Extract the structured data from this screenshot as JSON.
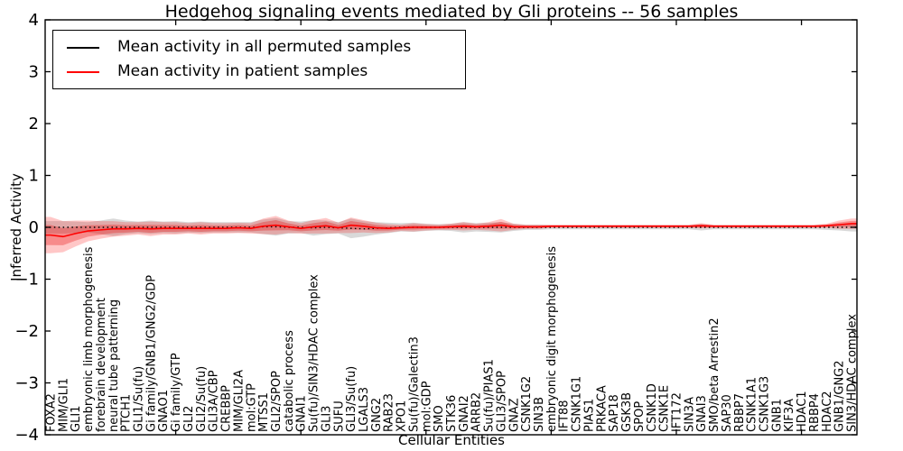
{
  "title": "Hedgehog signaling events mediated by Gli proteins -- 56 samples",
  "axes": {
    "xlabel": "Cellular Entities",
    "ylabel": "Inferred Activity",
    "y_tick_labels": [
      "4",
      "3",
      "2",
      "1",
      "0",
      "−1",
      "−2",
      "−3",
      "−4"
    ],
    "frame_color": "#000000"
  },
  "legend": {
    "items": [
      {
        "label": "Mean activity in all permuted samples",
        "color": "#000000"
      },
      {
        "label": "Mean activity in patient samples",
        "color": "#ff0000"
      }
    ]
  },
  "chart_data": {
    "type": "line",
    "title": "Hedgehog signaling events mediated by Gli proteins -- 56 samples",
    "xlabel": "Cellular Entities",
    "ylabel": "Inferred Activity",
    "ylim": [
      -4,
      4
    ],
    "grid": false,
    "legend_position": "upper left",
    "x_major_tick_indices": [
      10,
      20,
      30,
      40,
      50,
      60
    ],
    "categories": [
      "FOXA2",
      "MIM/GLI1",
      "GLI1",
      "embryonic limb morphogenesis",
      "forebrain development",
      "neural tube patterning",
      "PTCH1",
      "GLI1/Su(fu)",
      "Gi family/GNB1/GNG2/GDP",
      "GNAO1",
      "Gi family/GTP",
      "GLI2",
      "GLI2/Su(fu)",
      "GLI3A/CBP",
      "CREBBP",
      "MIM/GLI2A",
      "mol:GTP",
      "MTSS1",
      "GLI2/SPOP",
      "catabolic process",
      "GNAI1",
      "Su(fu)/SIN3/HDAC complex",
      "GLI3",
      "SUFU",
      "GLI3/Su(fu)",
      "LGALS3",
      "GNG2",
      "RAB23",
      "XPO1",
      "Su(fu)/Galectin3",
      "mol:GDP",
      "SMO",
      "STK36",
      "GNAI2",
      "ARRB2",
      "Su(fu)/PIAS1",
      "GLI3/SPOP",
      "GNAZ",
      "CSNK1G2",
      "SIN3B",
      "embryonic digit morphogenesis",
      "IFT88",
      "CSNK1G1",
      "PIAS1",
      "PRKACA",
      "SAP18",
      "GSK3B",
      "SPOP",
      "CSNK1D",
      "CSNK1E",
      "IFT172",
      "SIN3A",
      "GNAI3",
      "SMO/beta Arrestin2",
      "SAP30",
      "RBBP7",
      "CSNK1A1",
      "CSNK1G3",
      "GNB1",
      "KIF3A",
      "HDAC1",
      "RBBP4",
      "HDAC2",
      "GNB1/GNG2",
      "SIN3/HDAC complex"
    ],
    "series": [
      {
        "name": "Mean activity in all permuted samples",
        "color": "#000000",
        "line_style": "dotted",
        "band_color": "rgba(80,80,80,0.22)",
        "values": [
          0,
          0,
          0,
          0,
          0,
          0,
          0,
          0,
          0,
          0,
          0,
          0,
          0,
          0,
          0,
          0,
          0,
          0.01,
          0.01,
          0,
          0,
          -0.01,
          0,
          -0.01,
          -0.02,
          -0.03,
          -0.02,
          -0.01,
          0,
          0,
          0,
          0,
          0,
          0,
          0,
          0,
          0,
          0,
          0,
          0,
          0,
          0,
          0,
          0,
          0,
          0,
          0,
          0,
          0,
          0,
          0,
          0,
          0,
          0,
          0,
          0,
          0,
          0,
          0,
          0,
          0,
          0,
          0,
          0,
          0
        ],
        "band_halfwidth": [
          0.12,
          0.12,
          0.11,
          0.1,
          0.13,
          0.17,
          0.13,
          0.11,
          0.13,
          0.11,
          0.12,
          0.1,
          0.11,
          0.1,
          0.1,
          0.1,
          0.1,
          0.14,
          0.17,
          0.12,
          0.11,
          0.15,
          0.13,
          0.11,
          0.19,
          0.15,
          0.12,
          0.1,
          0.08,
          0.09,
          0.07,
          0.06,
          0.07,
          0.1,
          0.08,
          0.09,
          0.1,
          0.07,
          0.05,
          0.05,
          0.04,
          0.04,
          0.04,
          0.04,
          0.04,
          0.04,
          0.04,
          0.04,
          0.04,
          0.04,
          0.04,
          0.04,
          0.06,
          0.04,
          0.04,
          0.04,
          0.04,
          0.04,
          0.04,
          0.04,
          0.04,
          0.04,
          0.05,
          0.06,
          0.08
        ]
      },
      {
        "name": "Mean activity in patient samples",
        "color": "#ff0000",
        "line_style": "solid",
        "band_color": "rgba(255,0,0,0.22)",
        "band_inner_color": "rgba(230,0,0,0.30)",
        "values": [
          -0.15,
          -0.18,
          -0.12,
          -0.07,
          -0.05,
          -0.03,
          -0.03,
          -0.02,
          -0.03,
          -0.02,
          -0.02,
          -0.02,
          -0.02,
          -0.02,
          -0.02,
          -0.01,
          -0.02,
          0.02,
          0.04,
          0.01,
          -0.02,
          0.01,
          0.03,
          -0.01,
          0.04,
          0.02,
          -0.01,
          -0.02,
          -0.01,
          0,
          0,
          0,
          0.01,
          0.02,
          0.01,
          0.02,
          0.04,
          0.01,
          0.01,
          0.01,
          0.02,
          0.02,
          0.02,
          0.02,
          0.02,
          0.02,
          0.02,
          0.02,
          0.02,
          0.02,
          0.02,
          0.02,
          0.03,
          0.02,
          0.02,
          0.02,
          0.02,
          0.02,
          0.02,
          0.02,
          0.02,
          0.02,
          0.03,
          0.05,
          0.07
        ],
        "band_halfwidth": [
          0.35,
          0.3,
          0.25,
          0.2,
          0.17,
          0.15,
          0.13,
          0.12,
          0.14,
          0.12,
          0.12,
          0.1,
          0.12,
          0.1,
          0.1,
          0.1,
          0.1,
          0.15,
          0.18,
          0.12,
          0.1,
          0.13,
          0.15,
          0.1,
          0.15,
          0.12,
          0.1,
          0.08,
          0.06,
          0.08,
          0.06,
          0.05,
          0.06,
          0.08,
          0.06,
          0.08,
          0.12,
          0.06,
          0.04,
          0.04,
          0.03,
          0.03,
          0.03,
          0.03,
          0.03,
          0.03,
          0.03,
          0.03,
          0.03,
          0.03,
          0.03,
          0.03,
          0.05,
          0.03,
          0.03,
          0.03,
          0.03,
          0.03,
          0.03,
          0.03,
          0.03,
          0.03,
          0.04,
          0.08,
          0.1
        ]
      }
    ]
  }
}
